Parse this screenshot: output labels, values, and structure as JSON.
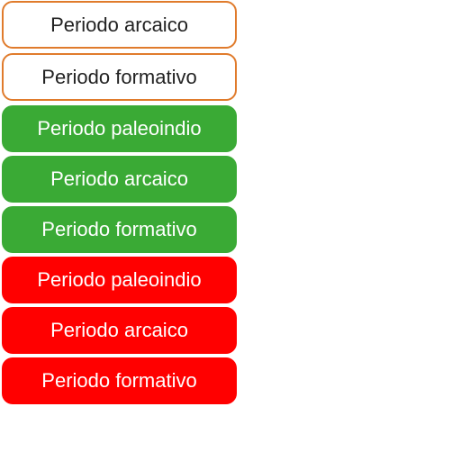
{
  "options": [
    {
      "label": "Periodo arcaico",
      "state": "neutral"
    },
    {
      "label": "Periodo formativo",
      "state": "neutral"
    },
    {
      "label": "Periodo paleoindio",
      "state": "correct"
    },
    {
      "label": "Periodo arcaico",
      "state": "correct"
    },
    {
      "label": "Periodo formativo",
      "state": "correct"
    },
    {
      "label": "Periodo paleoindio",
      "state": "incorrect"
    },
    {
      "label": "Periodo arcaico",
      "state": "incorrect"
    },
    {
      "label": "Periodo formativo",
      "state": "incorrect"
    }
  ],
  "colors": {
    "neutral_border": "#e07b2c",
    "correct_fill": "#3aaa35",
    "incorrect_fill": "#ff0000"
  }
}
